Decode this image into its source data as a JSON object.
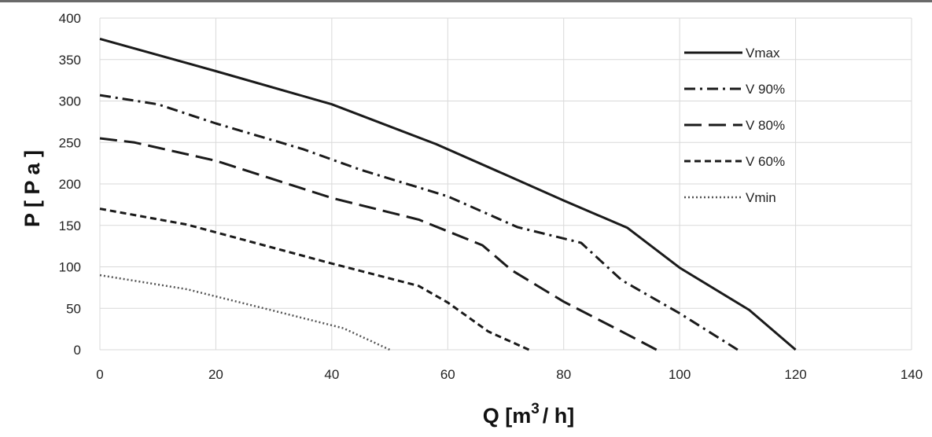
{
  "chart_data": {
    "type": "line",
    "xlabel": {
      "pre": "Q [m",
      "sup": "3",
      "post": "/ h]"
    },
    "ylabel": "P [ P a ]",
    "xlim": [
      0,
      140
    ],
    "ylim": [
      0,
      400
    ],
    "x_ticks": [
      0,
      20,
      40,
      60,
      80,
      100,
      120,
      140
    ],
    "y_ticks": [
      0,
      50,
      100,
      150,
      200,
      250,
      300,
      350,
      400
    ],
    "grid": true,
    "legend_position": "right",
    "series": [
      {
        "name": "Vmax",
        "style": "solid",
        "color": "#1a1a1a",
        "points": [
          [
            0,
            375
          ],
          [
            20,
            336
          ],
          [
            40,
            296
          ],
          [
            58,
            248
          ],
          [
            70,
            211
          ],
          [
            80,
            180
          ],
          [
            91,
            147
          ],
          [
            100,
            99
          ],
          [
            112,
            48
          ],
          [
            120,
            0
          ]
        ]
      },
      {
        "name": "V 90%",
        "style": "dashdot",
        "color": "#1a1a1a",
        "points": [
          [
            0,
            307
          ],
          [
            10,
            296
          ],
          [
            20,
            273
          ],
          [
            35,
            242
          ],
          [
            45,
            217
          ],
          [
            60,
            185
          ],
          [
            72,
            148
          ],
          [
            83,
            129
          ],
          [
            90,
            84
          ],
          [
            100,
            44
          ],
          [
            110,
            0
          ]
        ]
      },
      {
        "name": "V 80%",
        "style": "longdash",
        "color": "#1a1a1a",
        "points": [
          [
            0,
            255
          ],
          [
            6,
            250
          ],
          [
            20,
            228
          ],
          [
            40,
            183
          ],
          [
            55,
            157
          ],
          [
            66,
            126
          ],
          [
            71,
            96
          ],
          [
            80,
            58
          ],
          [
            90,
            22
          ],
          [
            96,
            0
          ]
        ]
      },
      {
        "name": "V 60%",
        "style": "shortdash",
        "color": "#1a1a1a",
        "points": [
          [
            0,
            170
          ],
          [
            15,
            151
          ],
          [
            40,
            104
          ],
          [
            55,
            77
          ],
          [
            60,
            57
          ],
          [
            67,
            22
          ],
          [
            74,
            0
          ]
        ]
      },
      {
        "name": "Vmin",
        "style": "dotted",
        "color": "#555555",
        "points": [
          [
            0,
            90
          ],
          [
            15,
            73
          ],
          [
            30,
            47
          ],
          [
            42,
            26
          ],
          [
            50,
            0
          ]
        ]
      }
    ]
  }
}
